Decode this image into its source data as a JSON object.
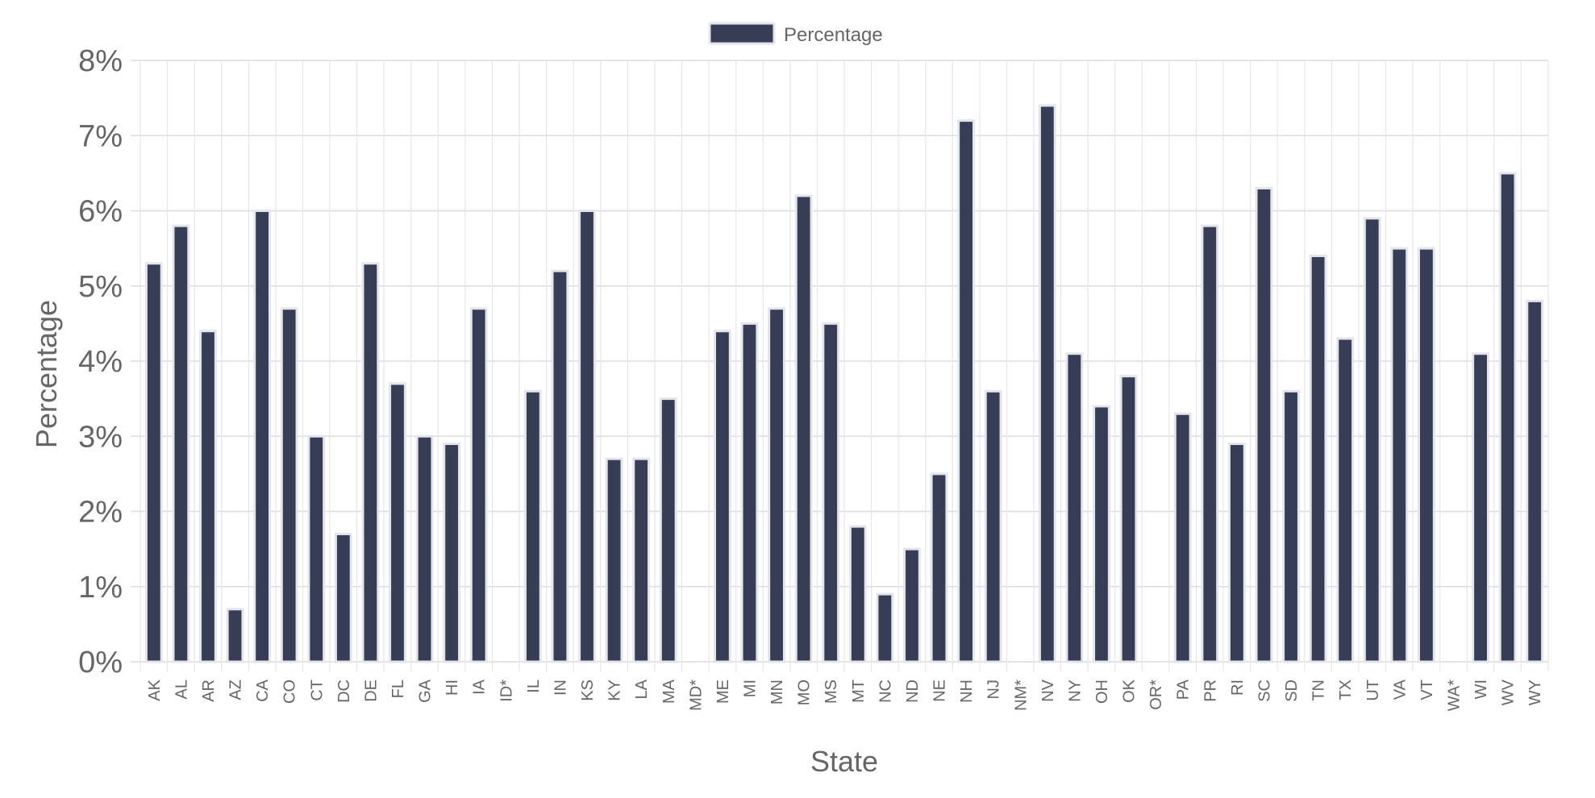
{
  "chart_data": {
    "type": "bar",
    "xlabel": "State",
    "ylabel": "Percentage",
    "ylim": [
      0,
      8
    ],
    "y_ticks": [
      "0%",
      "1%",
      "2%",
      "3%",
      "4%",
      "5%",
      "6%",
      "7%",
      "8%"
    ],
    "grid": true,
    "legend_position": "top-center",
    "categories": [
      "AK",
      "AL",
      "AR",
      "AZ",
      "CA",
      "CO",
      "CT",
      "DC",
      "DE",
      "FL",
      "GA",
      "HI",
      "IA",
      "ID*",
      "IL",
      "IN",
      "KS",
      "KY",
      "LA",
      "MA",
      "MD*",
      "ME",
      "MI",
      "MN",
      "MO",
      "MS",
      "MT",
      "NC",
      "ND",
      "NE",
      "NH",
      "NJ",
      "NM*",
      "NV",
      "NY",
      "OH",
      "OK",
      "OR*",
      "PA",
      "PR",
      "RI",
      "SC",
      "SD",
      "TN",
      "TX",
      "UT",
      "VA",
      "VT",
      "WA*",
      "WI",
      "WV",
      "WY"
    ],
    "series": [
      {
        "name": "Percentage",
        "color": "#363d55",
        "border_color": "#e4e4ec",
        "values": [
          5.3,
          5.8,
          4.4,
          0.7,
          6.0,
          4.7,
          3.0,
          1.7,
          5.3,
          3.7,
          3.0,
          2.9,
          4.7,
          null,
          3.6,
          5.2,
          6.0,
          2.7,
          2.7,
          3.5,
          null,
          4.4,
          4.5,
          4.7,
          6.2,
          4.5,
          1.8,
          0.9,
          1.5,
          2.5,
          7.2,
          3.6,
          null,
          7.4,
          4.1,
          3.4,
          3.8,
          null,
          3.3,
          5.8,
          2.9,
          6.3,
          3.6,
          5.4,
          4.3,
          5.9,
          5.5,
          5.5,
          null,
          4.1,
          6.5,
          4.8
        ]
      }
    ]
  }
}
